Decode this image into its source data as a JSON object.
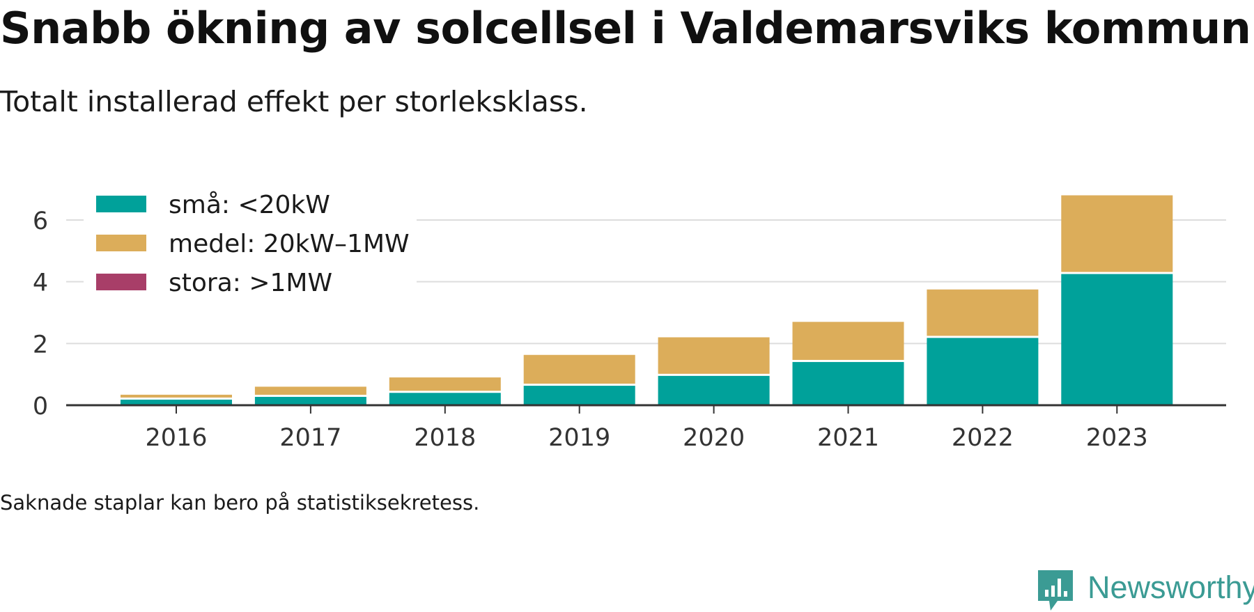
{
  "title": "Snabb ökning av solcellsel i Valdemarsviks kommun",
  "subtitle": "Totalt installerad effekt per storleksklass.",
  "note": "Saknade staplar kan bero på statistiksekretess.",
  "brand": {
    "name": "Newsworthy",
    "color": "#3b9b94",
    "icon": "newsworthy-logo-icon"
  },
  "colors": {
    "small": "#00a19a",
    "medium": "#dcad5a",
    "large": "#a83e68",
    "grid": "#dddddd",
    "axis": "#333333"
  },
  "chart_data": {
    "type": "bar",
    "stacked": true,
    "categories": [
      "2016",
      "2017",
      "2018",
      "2019",
      "2020",
      "2021",
      "2022",
      "2023"
    ],
    "series": [
      {
        "name": "små: <20kW",
        "color": "#00a19a",
        "values": [
          0.18,
          0.27,
          0.4,
          0.63,
          0.95,
          1.4,
          2.18,
          4.25
        ]
      },
      {
        "name": "medel: 20kW–1MW",
        "color": "#dcad5a",
        "values": [
          0.16,
          0.33,
          0.5,
          1.0,
          1.25,
          1.3,
          1.57,
          2.55
        ]
      },
      {
        "name": "stora: >1MW",
        "color": "#a83e68",
        "values": [
          0,
          0,
          0,
          0,
          0,
          0,
          0,
          0
        ]
      }
    ],
    "ylim": [
      0,
      7
    ],
    "yticks": [
      0,
      2,
      4,
      6
    ],
    "grid": true,
    "legend_position": "top-left"
  }
}
